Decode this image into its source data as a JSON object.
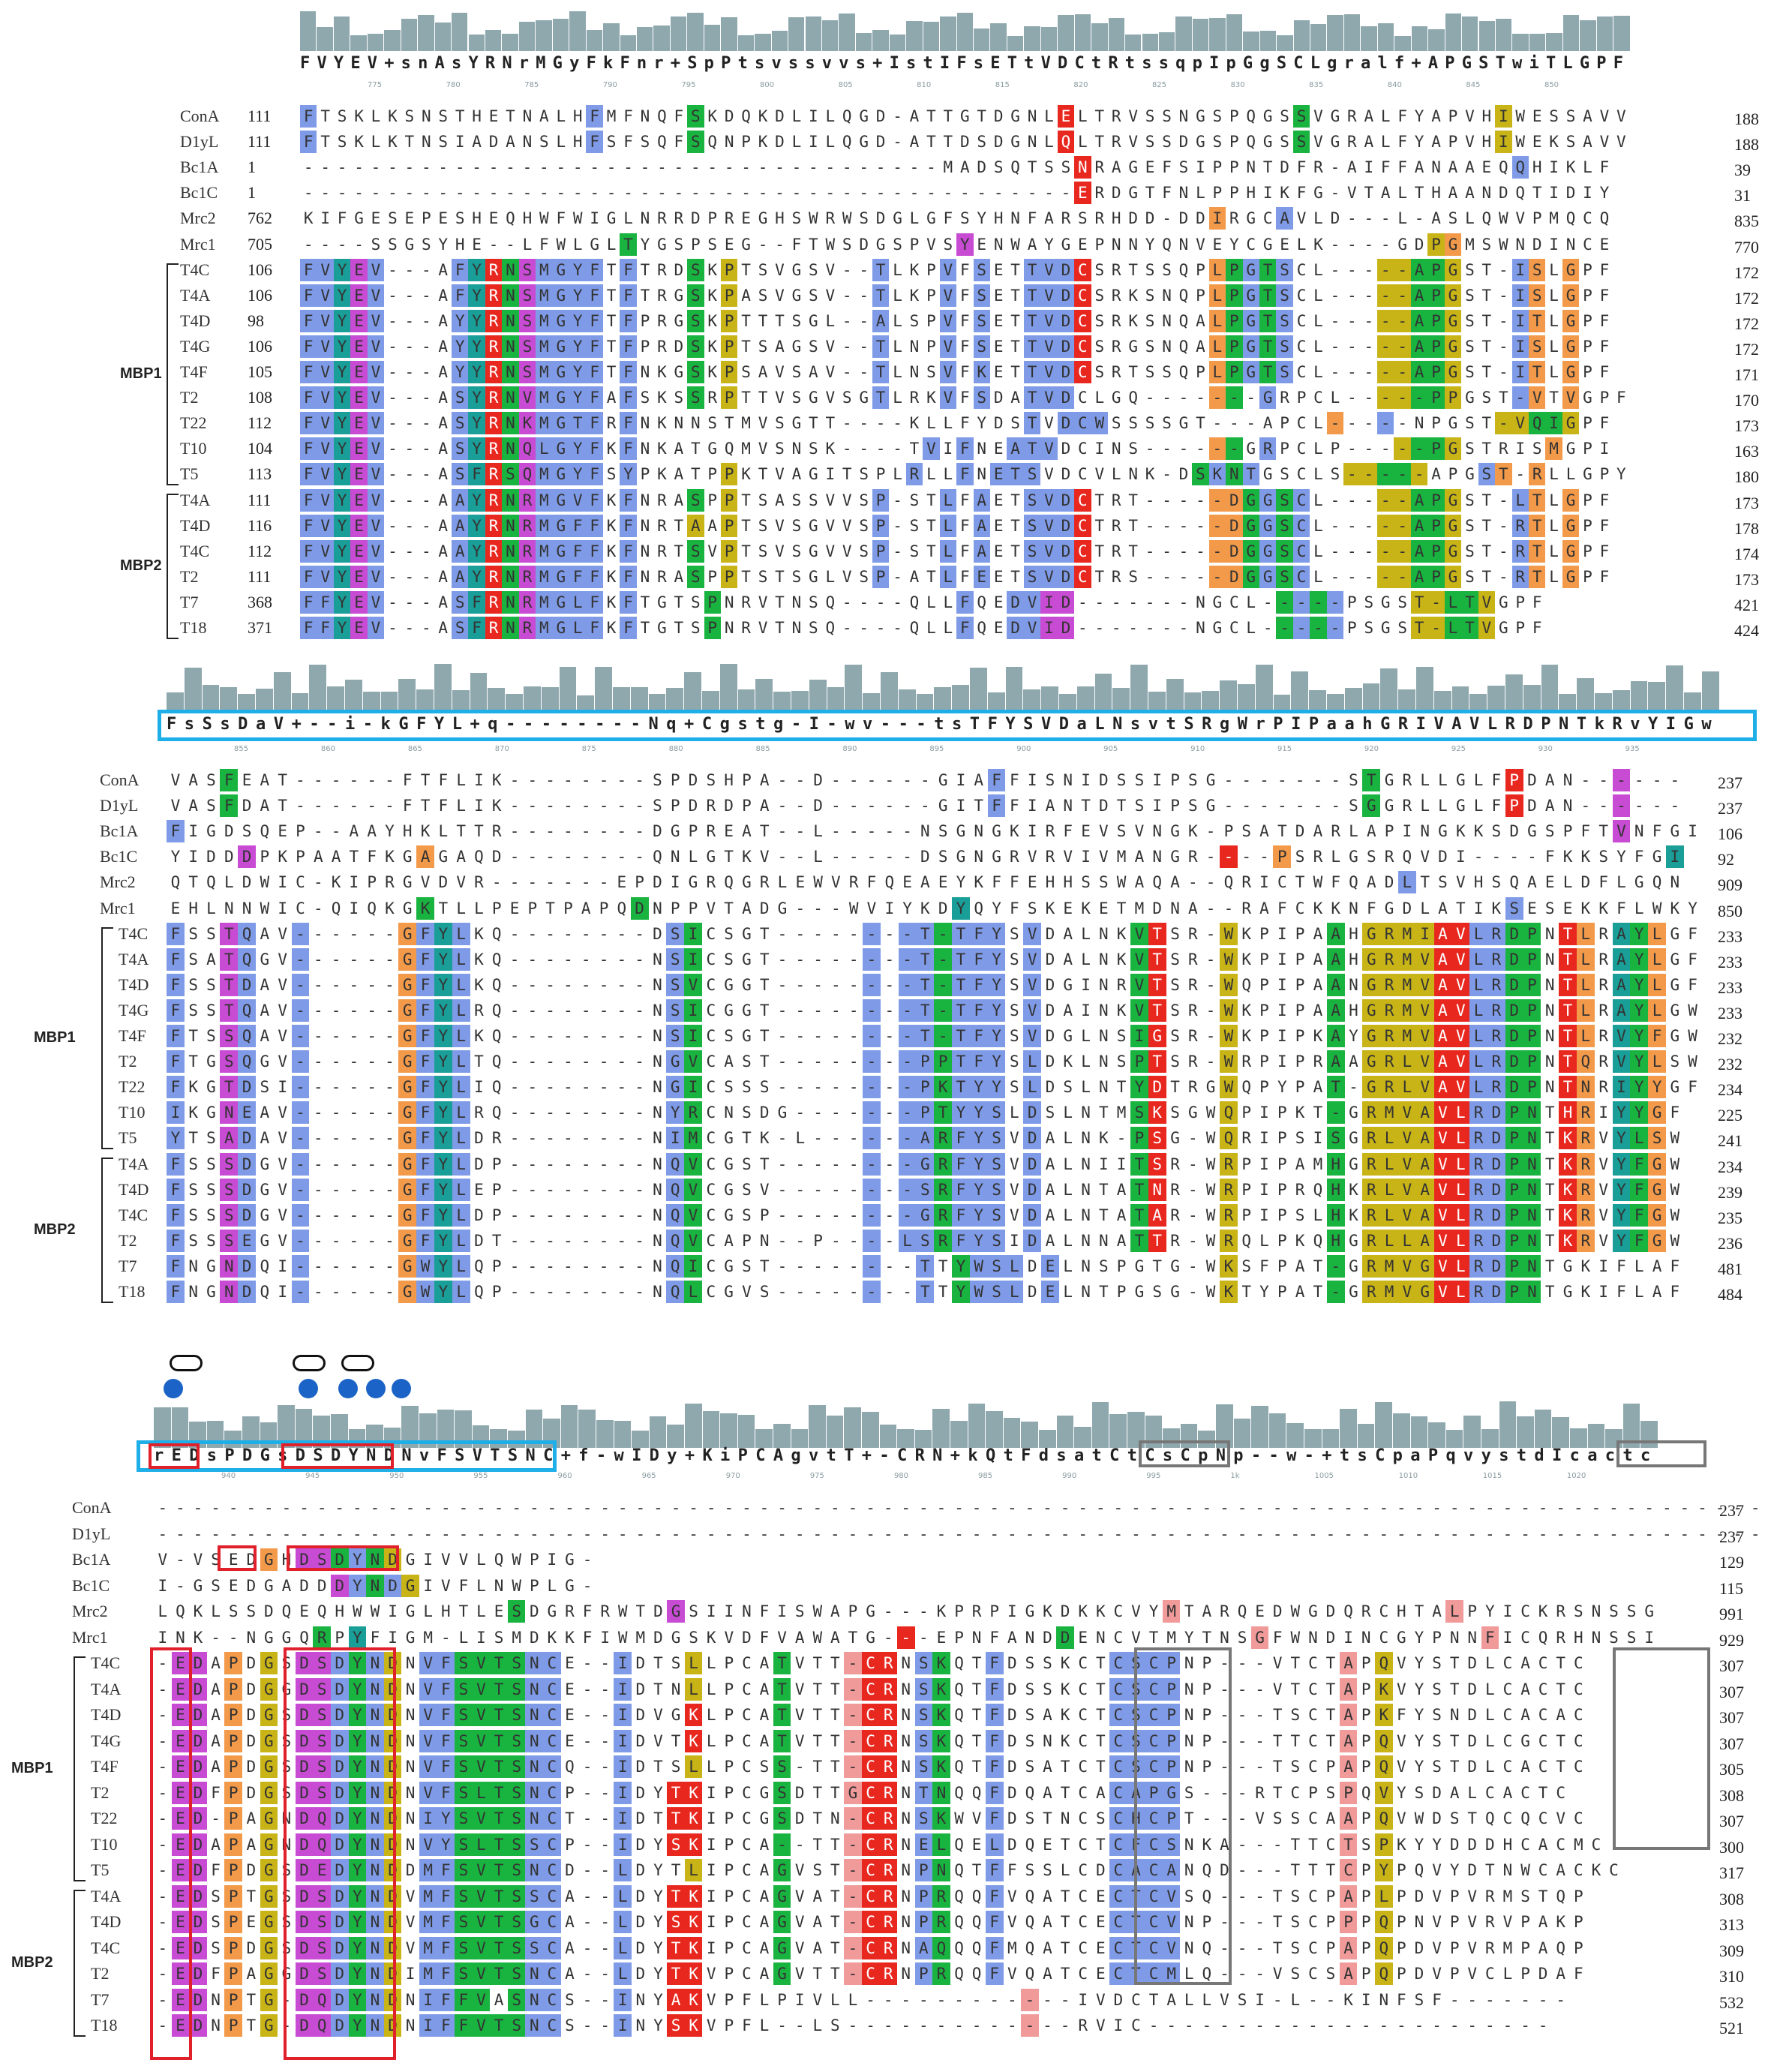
{
  "blocks": [
    {
      "consensus": "FVYEV+snAsYRNrMGyFkFnr+SpPtsvssvvs+IstIFsETtVDCtRtssqpIpGgSCLgralf+APGSTwiTLGPF",
      "tick_labels": [
        "775",
        "780",
        "785",
        "790",
        "795",
        "800",
        "805",
        "810",
        "815",
        "820",
        "825",
        "830",
        "835",
        "840",
        "845",
        "850"
      ],
      "rows": [
        {
          "name": "ConA",
          "start": "111",
          "end": "188",
          "seq": "FTSKLKSNSTHETNALHFMFNQFSKDQKDLILQGD-ATTGTDGNLELTRVSSNGSPQGSSVGRALFYAPVHIWESSAVV",
          "colors": "b................b.....g.....................r.............g...........y........"
        },
        {
          "name": "D1yL",
          "start": "111",
          "end": "188",
          "seq": "FTSKLKTNSIADANSLHFSFSQFSQNPKDLILQGD-ATTDSDGNLQLTRVSSDGSPQGSSVGRALFYAPVHIWEKSAVV",
          "colors": "b................b.....g.....................r.............g...........y........"
        },
        {
          "name": "Bc1A",
          "start": "1",
          "end": "39",
          "seq": "--------------------------------------MADSQTSSNRAGEFSIPPNTDFR-AIFFANAAEQQHIKLF",
          "colors": "..............................................r.........................b.....b"
        },
        {
          "name": "Bc1C",
          "start": "1",
          "end": "31",
          "seq": "----------------------------------------------ERDGTFNLPPHIKFG-VTALTHAANDQTIDIY",
          "colors": "..............................................r................................"
        },
        {
          "name": "Mrc2",
          "start": "762",
          "end": "835",
          "seq": "KIFGESEPESHEQHWFWIGLNRRDPREGHSWRWSDGLGFSYHNFARSRHDD-DDIRGCAVLD---L-ASLQWVPMQCQ",
          "colors": "......................................................o...b......................"
        },
        {
          "name": "Mrc1",
          "start": "705",
          "end": "770",
          "seq": "----SSGSYHE--LFWLGLTYGSPSEG--FTWSDGSPVSYENWAYGEPNNYQNVEYCGELK----GDPGMSWNDINCE",
          "colors": "...................g...................m...........................yo..........."
        },
        {
          "name": "T4C",
          "start": "106",
          "end": "172",
          "group": "MBP1",
          "seq": "FVYEV---AFYRNSMGYFTFTRDSKPTSVGSV--TLKPVFSETTVDCSRTSSQPLPGTSCL-----APGST-ISLGPF",
          "colors": "bbtmb....btrgmbbbb.b...g.y........b...b.b..bbbr.......ogbgb.....yyggy...bo.o"
        },
        {
          "name": "T4A",
          "start": "106",
          "end": "172",
          "seq": "FVYEV---AFYRNSMGYFTFTRGSKPASVGSV--TLKPVFSETTVDCSRKSNQPLPGTSCL-----APGST-ISLGPF",
          "colors": "bbtmb....btrgmbbbb.b...g.y........b...b.b..bbbr.......ogbgb.....yyggy...bo.o"
        },
        {
          "name": "T4D",
          "start": "98",
          "end": "172",
          "seq": "FVYEV---AYYRNSMGYFTFPRGSKPTTTSGL--ALSPVFSETTVDCSRKSNQALPGTSCL-----APGST-ITLGPF",
          "colors": "bbtmb....btrgmbbbb.b...g.y........b...b.b..bbbr.......ogbgb.....yyggy...bo.o"
        },
        {
          "name": "T4G",
          "start": "106",
          "end": "172",
          "seq": "FVYEV---AYYRNSMGYFTFPRDSKPTSAGSV--TLNPVFSETTVDCSRGSNQALPGTSCL-----APGST-ISLGPF",
          "colors": "bbtmb....btrgmbbbb.b...g.y........b...b.b..bbbr.......ogbgb.....yyggy...bo.o"
        },
        {
          "name": "T4F",
          "start": "105",
          "end": "171",
          "seq": "FVYEV---AYYRNSMGYFTFNKGSKPSAVSAV--TLNSVFKETTVDCSRTSSQPLPGTSCL-----APGST-ITLGPF",
          "colors": "bbtmb....btrgmbbbb.b...g.y........b...b.b..bbbr.......ogbgb.....yyggy...bo.o"
        },
        {
          "name": "T2",
          "start": "108",
          "end": "170",
          "seq": "FVYEV---ASYRNVMGYFAFSKSSRPTTVSGVSGTLRKVFSDATVDCLGQ-------GRPCL-----PPGST-VTVGPF",
          "colors": "bbtmb....btrgmbbbb.b...g.y........b...b.b..bbb........og.b......yyggy...bo.o"
        },
        {
          "name": "T22",
          "start": "112",
          "end": "173",
          "seq": "FVYEV---ASYRNKMGTFRFNKNNSTMVSGTT----KLLFYDSTVDCWSSSSGT---APCL-----NPGST-VQIGPF",
          "colors": "bbtmb....btrgmbbbb.b.......................b.bbb.............o..b......yyggy...bo.o"
        },
        {
          "name": "T10",
          "start": "104",
          "end": "163",
          "seq": "FVYEV---ASYRNQLGYFKFNKATGQMVSNSK----TVIFNEATVDCINS------GRPCLP-----PGSTRISMGPI",
          "colors": "bbtmb....btrgmbbbb.b.................b.b..bbb.........og.b.......yggy.....o.."
        },
        {
          "name": "T5",
          "start": "113",
          "end": "180",
          "seq": "FVYEV---ASFRSQMGYFSYPKATPPKTVAGITSPLRLLFNETSVDCVLNK-DSKNTGSCLS-----APGST-RLLGPY",
          "colors": "bbtmb....btrgmbbbb.b.....y..........b..b.bbb.........gbgb.....yyggy...bo.o"
        },
        {
          "name": "T4A",
          "start": "111",
          "end": "173",
          "group": "MBP2",
          "seq": "FVYEV---AAYRNRMGVFKFNRASPPTSASSVVSP-STLFAETSVDCTRT-----DGGSCL-----APGST-LTLGPF",
          "colors": "bbtmb....btrgmbbbb.b...g.y........b...b.b..bbbr.......oogbgb....yyggy...bo.o"
        },
        {
          "name": "T4D",
          "start": "116",
          "end": "178",
          "seq": "FVYEV---AAYRNRMGFFKFNRTAAPTSVSGVVSP-STLFAETSVDCTRT-----DGGSCL-----APGST-RTLGPF",
          "colors": "bbtmb....btrgmbbbb.b...y.y........b...b.b..bbbr.......oogbgb....yyggy...bo.o"
        },
        {
          "name": "T4C",
          "start": "112",
          "end": "174",
          "seq": "FVYEV---AAYRNRMGFFKFNRTSVPTSVSGVVSP-STLFAETSVDCTRT-----DGGSCL-----APGST-RTLGPF",
          "colors": "bbtmb....btrgmbbbb.b...g.y........b...b.b..bbbr.......oogbgb....yyggy...bo.o"
        },
        {
          "name": "T2",
          "start": "111",
          "end": "173",
          "seq": "FVYEV---AAYRNRMGFFKFNRASPPTSTSGLVSP-ATLFEETSVDCTRS-----DGGSCL-----APGST-RTLGPF",
          "colors": "bbtmb....btrgmbbbb.b...g.y........b...b.b..bbbr.......oogbgb....yyggy...bo.o"
        },
        {
          "name": "T7",
          "start": "368",
          "end": "421",
          "seq": "FFYEV---ASFRNRMGLFKFTGTSPNRVTNSQ----QLLFQEDVID-------NGCL-----PSGST-LTVGPF",
          "colors": "bbtmb....btrgmbbbb.b....g..............b..bbmm............gbgb....yyggy...bo.o"
        },
        {
          "name": "T18",
          "start": "371",
          "end": "424",
          "seq": "FFYEV---ASFRNRMGLFKFTGTSPNRVTNSQ----QLLFQEDVID-------NGCL-----PSGST-LTVGPF",
          "colors": "bbtmb....btrgmbbbb.b....g..............b..bbmm............gbgb....yyggy...bo.o"
        }
      ]
    },
    {
      "consensus": "FsSsDaV+--i-kGFYL+q--------Nq+Cgstg-I-wv---tsTFYSVDaLNsvtSRgWrPIPaahGRIVAVLRDPNTkRvYIGw",
      "tick_labels": [
        "855",
        "860",
        "865",
        "870",
        "875",
        "880",
        "885",
        "890",
        "895",
        "900",
        "905",
        "910",
        "915",
        "920",
        "925",
        "930",
        "935"
      ],
      "rows": [
        {
          "name": "ConA",
          "end": "237",
          "seq": "VASFEAT------FTFLIK--------SPDSHPA--D------GIAFFISNIDSSIPSG-------STGRLLGLFPDAN------",
          "colors": "...g..........................................b....................g.......r.....m......"
        },
        {
          "name": "D1yL",
          "end": "237",
          "seq": "VASFDAT------FTFLIK--------SPDRDPA--D------GITFFIANTDTSIPSG-------SGGRLLGLFPDAN------",
          "colors": "...g..........................................b....................g.......r.....m......"
        },
        {
          "name": "Bc1A",
          "end": "106",
          "seq": "FIGDSQEP--AAYHKLTTR--------DGPREAT--L-----NSGNGKIRFEVSVNGK-PSATDARLAPINGKKSDGSPFTVNFGI",
          "colors": "b................................................................................m....o"
        },
        {
          "name": "Bc1C",
          "end": "92",
          "seq": "YIDDDPKPAATFKGAGAQD--------QNLGTKV--L-----DSGNGRVRVIVMANGR----PSRLGSRQVDI----FKKSYFGI",
          "colors": "....m.........o............................................r..o.....................t.o"
        },
        {
          "name": "Mrc2",
          "end": "909",
          "seq": "QTQLDWIC-KIPRGVDVR-------EPDIGRQGRLEWVRFQEAEYKFFEHHSSWAQA--QRICTWFQADLTSVHSQAELDFLGQN",
          "colors": ".....................................................................b................"
        },
        {
          "name": "Mrc1",
          "end": "850",
          "seq": "EHLNNWIC-QIQKGKTLLPEPTPAPQDNPPVTADG---WVIYKDYQYFSKEKETMDNA--RAFCKKNFGDLATIKSESEKKFLWKY",
          "colors": "..............g...........g.................t..............................b..........."
        },
        {
          "name": "T4C",
          "end": "233",
          "group": "MBP1",
          "seq": "FSSTQAV------GFYLKQ--------DSICSGT--------T-TFYSVDALNKVTSR-WKPIPAAHGRMIAVLRDPNTLRAYLGF",
          "colors": "b..mb..b.....obtb...........bg.........b.bbgbbb.b.....gr...y.....g.yyyyrrbbgg.ro.tgo"
        },
        {
          "name": "T4A",
          "end": "233",
          "seq": "FSATQGV------GFYLKQ--------NSICSGT--------T-TFYSVDALNKVTSR-WKPIPAAHGRMVAVLRDPNTLRAYLGF",
          "colors": "b..mb..b.....obtb...........bg.........b.bbgbbb.b.....gr...y.....g.yyyyrrbbgg.ro.tgo"
        },
        {
          "name": "T4D",
          "end": "233",
          "seq": "FSSTDAV------GFYLKQ--------NSVCGGT--------T-TFYSVDGINRVTSR-WQPIPAANGRMVAVLRDPNTLRAYLGF",
          "colors": "b..mb..b.....obtb...........bg.........b.bbgbbb.b.....gr...y.....g.yyyyrrbbgg.ro.tgo"
        },
        {
          "name": "T4G",
          "end": "233",
          "seq": "FSSTQAV------GFYLRQ--------NSICGGT--------T-TFYSVDAINKVTSR-WKPIPAAHGRMVAVLRDPNTLRAYLGW",
          "colors": "b..mb..b.....obtb...........bg.........b.bbgbbb.b.....gr...y.....g.yyyyrrbbgg.ro.tgo"
        },
        {
          "name": "T4F",
          "end": "232",
          "seq": "FTSSQAV------GFYLKQ--------NSICSGT--------T-TFYSVDGLNSIGSR-WKPIPKAYGRMVAVLRDPNTLRVYFGW",
          "colors": "b..mb..b.....obtb...........bg.........b.bbgbbb.b.....gr...y.....g.yyyyrrbbgg.ro.tgo"
        },
        {
          "name": "T2",
          "end": "232",
          "seq": "FTGSQGV------GFYLTQ--------NGVCAST--------PPTFYSLDKLNSPTSR-WRPIPRAAGRLVAVLRDPNTQRVYLSW",
          "colors": "b..mb..b.....obtb...........bg.........b.bbgbbb.b.....gr...y.....g.yyyyrrbbgg.ro.tgo"
        },
        {
          "name": "T22",
          "end": "234",
          "seq": "FKGTDSI------GFYLIQ--------NGICSSS--------PKTYYSLDSLNTYDTRGWQPYPAT-GRLVAVLRDPNTNRIYYGF",
          "colors": "b..mb..b.....obtb...........bg.........b.bbgbbb.b.....gr...y.....g.yyyyrrbbgg.ro.tgo"
        },
        {
          "name": "T10",
          "end": "225",
          "seq": "IKGNEAV------GFYLRQ--------NYRCNSDG-------PTYYSLDSLNTMSKSGWQPIPKT-GRMVAVLRDPNTHRIYYGF",
          "colors": "b..mb..b.....obtb...........bg.........b.bbgbbb.b.....gr...y.....g.yyyyrrbbgg.ro.tgo"
        },
        {
          "name": "T5",
          "end": "241",
          "seq": "YTSADAV------GFYLDR--------NIMCGTK-L------ARFYSVDALNK-PSG-WQRIPSISGRLVAVLRDPNTKRVYLSW",
          "colors": "b..mb..b.....obtb...........bg.........b.bbgbbb.b.....gr...y.....g.yyyyrrbbgg.ro.tgo"
        },
        {
          "name": "T4A",
          "end": "234",
          "group": "MBP2",
          "seq": "FSSSDGV------GFYLDP--------NQVCGST--------GRFYSVDALNIITSR-WRPIPAMHGRLVAVLRDPNTKRVYFGW",
          "colors": "b..mb..b.....obtb...........bg.........b.bbgbbb.b.....gr...y.....g.yyyyrrbbgg.ro.tgo"
        },
        {
          "name": "T4D",
          "end": "239",
          "seq": "FSSSDGV------GFYLEP--------NQVCGSV--------SRFYSVDALNTATNR-WRPIPRQHKRLVAVLRDPNTKRVYFGW",
          "colors": "b..mb..b.....obtb...........bg.........b.bbgbbb.b.....gr...y.....g.yyyyrrbbgg.ro.tgo"
        },
        {
          "name": "T4C",
          "end": "235",
          "seq": "FSSSDGV------GFYLDP--------NQVCGSP--------GRFYSVDALNTATAR-WRPIPSLHKRLVAVLRDPNTKRVYFGW",
          "colors": "b..mb..b.....obtb...........bg.........b.bbgbbb.b.....gr...y.....g.yyyyrrbbgg.ro.tgo"
        },
        {
          "name": "T2",
          "end": "236",
          "seq": "FSSSEGV------GFYLDT--------NQVCAPN--P----LSRFYSIDALNNATTR-WRQLPKQHGRLLAVLRDPNTKRVYFGW",
          "colors": "b..mb..b.....obtb...........bg.........b.bbgbbb.b.....gr...y.....g.yyyyrrbbgg.ro.tgo"
        },
        {
          "name": "T7",
          "end": "481",
          "seq": "FNGNDQI------GWYLQP--------NQICGST--------TTYWSLDELNSPGTG-WKSFPAT-GRMVGVLRDPNTGKIFLAF",
          "colors": "b..mb..b.....obtb...........bg.........b..b.gbbb.b.........y.....g.yyyyrrbbgg......."
        },
        {
          "name": "T18",
          "end": "484",
          "seq": "FNGNDQI------GWYLQP--------NQLCGVS--------TTYWSLDELNTPGSG-WKTYPAT-GRMVGVLRDPNTGKIFLAF",
          "colors": "b..mb..b.....obtb...........bg.........b..b.gbbb.b.........y.....g.yyyyrrbbgg......."
        }
      ]
    },
    {
      "consensus": "rEDsPDGsDSDYNDNvFSVTSNC+f-wIDy+KiPCAgvtT+-CRN+kQtFdsatCtCsCpNp--w-+tsCpaPqvystdIcactc",
      "tick_labels": [
        "940",
        "945",
        "950",
        "955",
        "960",
        "965",
        "970",
        "975",
        "980",
        "985",
        "990",
        "995",
        "1k",
        "1005",
        "1010",
        "1015",
        "1020"
      ],
      "rows": [
        {
          "name": "ConA",
          "end": "237",
          "seq": "-------------------------------------------------------------------------------------------"
        },
        {
          "name": "D1yL",
          "end": "237",
          "seq": "-------------------------------------------------------------------------------------------"
        },
        {
          "name": "Bc1A",
          "end": "129",
          "seq": "V-VSEDGHDSDYNDGIVVLQWPIG-",
          "colors": "......o.mmgbgy..........."
        },
        {
          "name": "Bc1C",
          "end": "115",
          "seq": "I-GSEDGADDDYNDGIVFLNWPLG-",
          "colors": "..........mbgby..........."
        },
        {
          "name": "Mrc2",
          "end": "991",
          "seq": "LQKLSSDQEQHWWIGLHTLESDGRFRWTDGSIINFISWAPG---KPRPIGKDKKCVYMTARQEDWGDQRCHTALPYICKRSNSSG",
          "colors": "....................g........m...........................p...............p..............."
        },
        {
          "name": "Mrc1",
          "end": "929",
          "seq": "INK--NGGQRPYFIGM-LISMDKKFIWMDGSKVDFVAWATG---EPNFANDDENCVTMYTNSGFWNDINCGYPNNFICQRHNSSI",
          "colors": ".........g.t..............................r........g..........p............p..........."
        },
        {
          "name": "T4C",
          "end": "307",
          "group": "MBP1",
          "seq": "-EDAPDGSDSDYNDNVFSVTSNCE--IDTSLLPCATVTT-CRNSKQTFDSSKCTCSCPNP---VTCTAPQVYSTDLCACTC",
          "colors": ".mm.o.y.mmbgby.bbggggbb...b...y....g...prr.bg..b......bbbb.........p.y.........."
        },
        {
          "name": "T4A",
          "end": "307",
          "seq": "-EDAPDGGDSDYNDNVFSVTSNCE--IDTNLLPCATVTT-CRNSKQTFDSSKCTCSCPNP---VTCTAPKVYSTDLCACTC",
          "colors": ".mm.o.y.mmbgby.bbggggbb...b...y....g...prr.bg..b......bbbb.........p.y.........."
        },
        {
          "name": "T4D",
          "end": "307",
          "seq": "-EDAPDGSDSDYNDNVFSVTSNCE--IDVGKLPCATVTT-CRNSKQTFDSAKCTCSCPNP---TSCTAPKFYSNDLCACAC",
          "colors": ".mm.o.y.mmbgby.bbggggbb...b...r....g...prr.bg..b......bbbb.........p.y.........."
        },
        {
          "name": "T4G",
          "end": "307",
          "seq": "-EDAPDGSDSDYNDNVFSVTSNCE--IDVTKLPCATVTT-CRNSKQTFDSNKCTCSCPNP---TTCTAPQVYSTDLCGCTC",
          "colors": ".mm.o.y.mmbgby.bbggggbb...b...r....g...prr.bg..b......bbbb.........p.y.........."
        },
        {
          "name": "T4F",
          "end": "305",
          "seq": "-EDAPDGSDSDYNDNVFSVTSNCQ--IDTSLLPCSS-TT-CRNSKQTFDSATCTCSCPNP---TSCPAPQVYSTDLCACTC",
          "colors": ".mm.o.y.mmbgby.bbggggbb...b...y....g...prr.bg..b......bbbb.........p.y.........."
        },
        {
          "name": "T2",
          "end": "308",
          "seq": "-EDFPDGSDSDYNDNVFSLTSNCP--IDYTKIPCGSDTTGCRNTNQQFDQATCACAPGS---RTCPSPQVYSDALCACTC",
          "colors": ".mm.o.y.mmbgby.bbggggbb...b..rr....g...prr.bg..b......bbbb.........p.y.........."
        },
        {
          "name": "T22",
          "end": "307",
          "seq": "-ED-PAGNDQDYNDNIYSVTSNCT--IDTTKIPCGSDTN-CRNSKWVFDSTNCSCHCPT---VSSCAAPQVWDSTQCQCVC",
          "colors": ".mm.o.y.mmbgby.bbggggbb...b..rr....g...prr.bg..b......bbbb.........p.y.........."
        },
        {
          "name": "T10",
          "end": "300",
          "seq": "-EDAPAGNDQDYNDNVYSLTSSCP--IDYSKIPCA--TT-CRNELQELDQETCTCFCSNKA---TTCTSPKYYDDDHCACMC",
          "colors": ".mm.o.y.mmbgby.bbggggbb...b..rr....g...prr.bg..b......bbbb.........p.y.........."
        },
        {
          "name": "T5",
          "end": "317",
          "seq": "-EDFPDGSDEDYNDDMFSVTSNCD--LDYTLIPCAGVST-CRNPNQTFFSSLCDCACANQD---TTTCPYPQVYDTNWCACKC",
          "colors": ".mm.o.y.mmbgby.bbggggbb...b...y....g...prr.bg..b......bbbb.........p.y.........."
        },
        {
          "name": "T4A",
          "end": "308",
          "group": "MBP2",
          "seq": "-EDSPTGSDSDYNDVMFSVTSSCA--LDYTKIPCAGVAT-CRNPRQQFVQATCECTCVSQ---TSCPAPLPDVPVRMSTQP",
          "colors": ".mm.o.y.mmbgby.bbggggbb...b..rr....g...prr.bg..b......bbbb.........p.y.........."
        },
        {
          "name": "T4D",
          "end": "313",
          "seq": "-EDSPEGSDSDYNDVMFSVTSGCA--LDYSKIPCAGVAT-CRNPRQQFVQATCECTCVNP---TSCPPPQPNVPVRVPAKP",
          "colors": ".mm.o.y.mmbgby.bbggggbb...b..rr....g...prr.bg..b......bbbb.........p.y.........."
        },
        {
          "name": "T4C",
          "end": "309",
          "seq": "-EDSPDGSDSDYNDVMFSVTSSCA--LDYTKIPCAGVAT-CRNAQQQFMQATCECTCVNQ---TSCPAPQPDVPVRMPAQP",
          "colors": ".mm.o.y.mmbgby.bbggggbb...b..rr....g...prr.bg..b......bbbb.........p.y.........."
        },
        {
          "name": "T2",
          "end": "310",
          "seq": "-EDFPAGGDSDYNDIMFSVTSNCA--LDYTKVPCAGVTT-CRNPRQQFVQATCECTCMLQ---VSCSAPQPDVPVCLPDAF",
          "colors": ".mm.o.y.mmbgby.bbggggbb...b..rr....g...prr.bg..b......bbbb.........p.y.........."
        },
        {
          "name": "T7",
          "end": "532",
          "seq": "-EDNPTG-DQDYNDNIFFVASNCS--INYAKVPFLPIVLL------------IVDCTALLVSI-L--KINFSF-------",
          "colors": ".mm.o.y.mmbgby.bbgg.gbb...b..rr..................p..............................."
        },
        {
          "name": "T18",
          "end": "521",
          "seq": "-EDNPTG-DQDYNDNIFFVTSNCS--INYSKVPFL--LS-------------RVIC-----------------------",
          "colors": ".mm.o.y.mmbgby.bbggggbb...b..rr..................p..............................."
        }
      ]
    }
  ],
  "group_labels": [
    "MBP1",
    "MBP2"
  ]
}
